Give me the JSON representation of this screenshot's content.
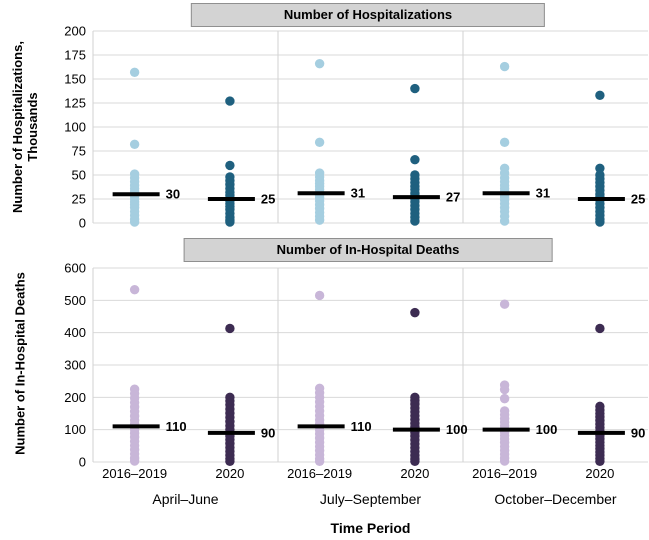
{
  "colors": {
    "light_blue": "#a5cee0",
    "dark_blue": "#1f607f",
    "light_purple": "#c8b6d8",
    "dark_purple": "#3d2c52",
    "grid": "#d9d9d9",
    "axis_line": "#d2d2d2",
    "median_line": "#000000",
    "title_bar_bg": "#d3d3d3",
    "title_bar_border": "#8f8f8f"
  },
  "x_axis": {
    "title": "Time Period",
    "period_labels": [
      "April–June",
      "July–September",
      "October–December"
    ],
    "series_labels": [
      "2016–2019",
      "2020"
    ]
  },
  "chart_data": [
    {
      "type": "scatter",
      "title": "Number of Hospitalizations",
      "ylabel_lines": [
        "Number of Hospitalizations,",
        "Thousands"
      ],
      "ylabel": "Number of Hospitalizations, Thousands",
      "ylim": [
        0,
        200
      ],
      "yticks": [
        0,
        25,
        50,
        75,
        100,
        125,
        150,
        175,
        200
      ],
      "grid": true,
      "legend": false,
      "dot_colors": {
        "2016–2019": "#a5cee0",
        "2020": "#1f607f"
      },
      "strips": [
        {
          "period": "April–June",
          "series": "2016–2019",
          "median": 30,
          "median_label": "30",
          "values": [
            157,
            82,
            51,
            47,
            43,
            39,
            36,
            33,
            30,
            28,
            25,
            22,
            19,
            16,
            12,
            8,
            4,
            1
          ]
        },
        {
          "period": "April–June",
          "series": "2020",
          "median": 25,
          "median_label": "25",
          "values": [
            127,
            60,
            48,
            44,
            40,
            36,
            32,
            29,
            26,
            23,
            20,
            17,
            14,
            10,
            6,
            3,
            1
          ]
        },
        {
          "period": "July–September",
          "series": "2016–2019",
          "median": 31,
          "median_label": "31",
          "values": [
            166,
            84,
            52,
            48,
            44,
            41,
            38,
            35,
            32,
            29,
            26,
            23,
            19,
            15,
            11,
            7,
            3
          ]
        },
        {
          "period": "July–September",
          "series": "2020",
          "median": 27,
          "median_label": "27",
          "values": [
            140,
            66,
            50,
            46,
            42,
            38,
            35,
            31,
            28,
            25,
            22,
            18,
            14,
            10,
            6,
            2
          ]
        },
        {
          "period": "October–December",
          "series": "2016–2019",
          "median": 31,
          "median_label": "31",
          "values": [
            163,
            84,
            57,
            52,
            47,
            43,
            39,
            36,
            33,
            30,
            27,
            24,
            20,
            16,
            12,
            7,
            2
          ]
        },
        {
          "period": "October–December",
          "series": "2020",
          "median": 25,
          "median_label": "25",
          "values": [
            133,
            57,
            50,
            46,
            42,
            38,
            34,
            30,
            27,
            24,
            20,
            16,
            12,
            8,
            4,
            1
          ]
        }
      ]
    },
    {
      "type": "scatter",
      "title": "Number of In-Hospital Deaths",
      "ylabel": "Number of In-Hospital Deaths",
      "ylim": [
        0,
        600
      ],
      "yticks": [
        0,
        100,
        200,
        300,
        400,
        500,
        600
      ],
      "grid": true,
      "legend": false,
      "dot_colors": {
        "2016–2019": "#c8b6d8",
        "2020": "#3d2c52"
      },
      "strips": [
        {
          "period": "April–June",
          "series": "2016–2019",
          "median": 110,
          "median_label": "110",
          "values": [
            533,
            225,
            212,
            198,
            184,
            170,
            156,
            142,
            129,
            118,
            110,
            100,
            89,
            77,
            64,
            51,
            38,
            25,
            12,
            3
          ]
        },
        {
          "period": "April–June",
          "series": "2020",
          "median": 90,
          "median_label": "90",
          "values": [
            413,
            200,
            189,
            177,
            164,
            151,
            138,
            125,
            112,
            100,
            90,
            80,
            69,
            57,
            45,
            33,
            21,
            10,
            2
          ]
        },
        {
          "period": "July–September",
          "series": "2016–2019",
          "median": 110,
          "median_label": "110",
          "values": [
            515,
            228,
            214,
            200,
            186,
            172,
            158,
            144,
            130,
            118,
            110,
            99,
            87,
            74,
            61,
            48,
            35,
            22,
            10,
            2
          ]
        },
        {
          "period": "July–September",
          "series": "2020",
          "median": 100,
          "median_label": "100",
          "values": [
            462,
            200,
            190,
            179,
            167,
            155,
            143,
            131,
            119,
            108,
            100,
            91,
            80,
            68,
            56,
            44,
            32,
            20,
            9,
            2
          ]
        },
        {
          "period": "October–December",
          "series": "2016–2019",
          "median": 100,
          "median_label": "100",
          "values": [
            488,
            238,
            224,
            196,
            158,
            146,
            134,
            123,
            112,
            102,
            100,
            92,
            82,
            71,
            60,
            48,
            36,
            24,
            12,
            3
          ]
        },
        {
          "period": "October–December",
          "series": "2020",
          "median": 90,
          "median_label": "90",
          "values": [
            413,
            172,
            161,
            150,
            139,
            128,
            117,
            106,
            96,
            90,
            81,
            71,
            61,
            51,
            41,
            31,
            21,
            11,
            2
          ]
        }
      ]
    }
  ]
}
